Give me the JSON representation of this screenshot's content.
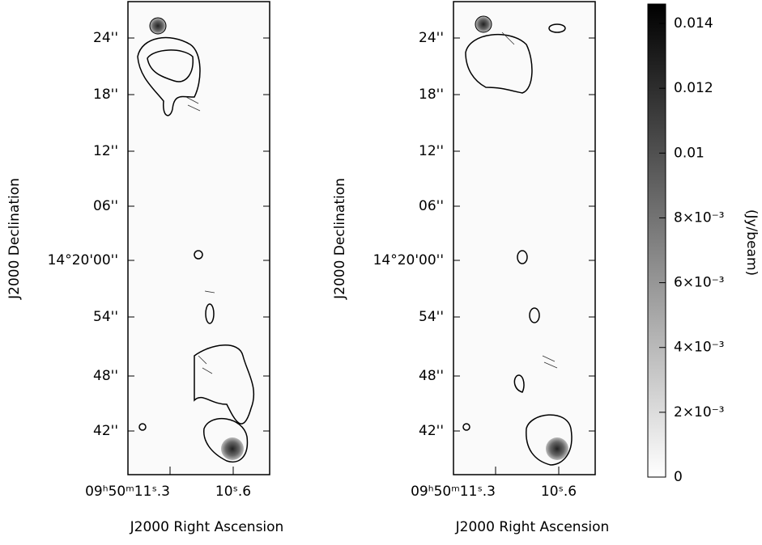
{
  "panels": [
    {
      "yticks": [
        "24''",
        "18''",
        "12''",
        "06''",
        "14°20'00''",
        "54''",
        "48''",
        "42''"
      ],
      "xticks": [
        "09ʰ50ᵐ11ˢ.3",
        "10ˢ.6"
      ],
      "xlabel": "J2000 Right Ascension",
      "ylabel": "J2000 Declination"
    },
    {
      "yticks": [
        "24''",
        "18''",
        "12''",
        "06''",
        "14°20'00''",
        "54''",
        "48''",
        "42''"
      ],
      "xticks": [
        "09ʰ50ᵐ11ˢ.3",
        "10ˢ.6"
      ],
      "xlabel": "J2000 Right Ascension",
      "ylabel": "J2000 Declination"
    }
  ],
  "colorbar": {
    "label": "(Jy/beam)",
    "lim": [
      0,
      0.0146
    ],
    "ticks": [
      {
        "value": 0.014,
        "label": "0.014"
      },
      {
        "value": 0.012,
        "label": "0.012"
      },
      {
        "value": 0.01,
        "label": "0.01"
      },
      {
        "value": 0.008,
        "label": "8×10⁻³"
      },
      {
        "value": 0.006,
        "label": "6×10⁻³"
      },
      {
        "value": 0.004,
        "label": "4×10⁻³"
      },
      {
        "value": 0.002,
        "label": "2×10⁻³"
      },
      0
    ]
  }
}
